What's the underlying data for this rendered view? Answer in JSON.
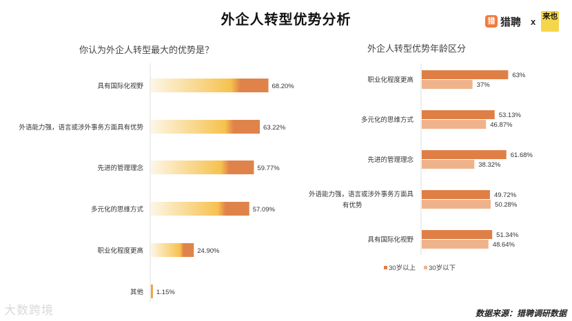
{
  "header": {
    "title": "外企人转型优势分析",
    "brand_logo_text": "猎",
    "brand_name": "猎聘",
    "separator": "x",
    "partner_logo_text": "来也",
    "colors": {
      "brand": "#f07b3f",
      "partner": "#f5d54a"
    }
  },
  "footer": {
    "watermark": "大数跨境",
    "source": "数据来源：猎聘调研数据"
  },
  "chart_data": [
    {
      "type": "bar",
      "orientation": "horizontal",
      "title": "你认为外企人转型最大的优势是？",
      "categories": [
        "具有国际化视野",
        "外语能力强，语言或涉外事务方面具有优势",
        "先进的管理理念",
        "多元化的思维方式",
        "职业化程度更高",
        "其他"
      ],
      "values": [
        68.2,
        63.22,
        59.77,
        57.09,
        24.9,
        1.15
      ],
      "value_labels": [
        "68.20%",
        "63.22%",
        "59.77%",
        "57.09%",
        "24.90%",
        "1.15%"
      ],
      "unit": "%",
      "xlim": [
        0,
        100
      ],
      "grid": false,
      "colors": {
        "gradient_start": "#fdf6e6",
        "gradient_mid": "#f6c24f",
        "end": "#e0834a"
      }
    },
    {
      "type": "bar",
      "orientation": "horizontal",
      "title": "外企人转型优势年龄区分",
      "categories": [
        "职业化程度更高",
        "多元化的思维方式",
        "先进的管理理念",
        "外语能力强，语言或涉外事务方面具有优势",
        "具有国际化视野"
      ],
      "category_lines": [
        [
          "职业化程度更高"
        ],
        [
          "多元化的思维方式"
        ],
        [
          "先进的管理理念"
        ],
        [
          "外语能力强，语言或涉外事务方面具",
          "有优势"
        ],
        [
          "具有国际化视野"
        ]
      ],
      "series": [
        {
          "name": "30岁以上",
          "values": [
            63,
            53.13,
            61.68,
            49.72,
            51.34
          ],
          "labels": [
            "63%",
            "53.13%",
            "61.68%",
            "49.72%",
            "51.34%"
          ],
          "color": "#df7f46"
        },
        {
          "name": "30岁以下",
          "values": [
            37,
            46.87,
            38.32,
            50.28,
            48.64
          ],
          "labels": [
            "37%",
            "46.87%",
            "38.32%",
            "50.28%",
            "48.64%"
          ],
          "color": "#efb38b"
        }
      ],
      "unit": "%",
      "xlim": [
        0,
        100
      ],
      "grid": false,
      "legend": "bottom-center"
    }
  ]
}
